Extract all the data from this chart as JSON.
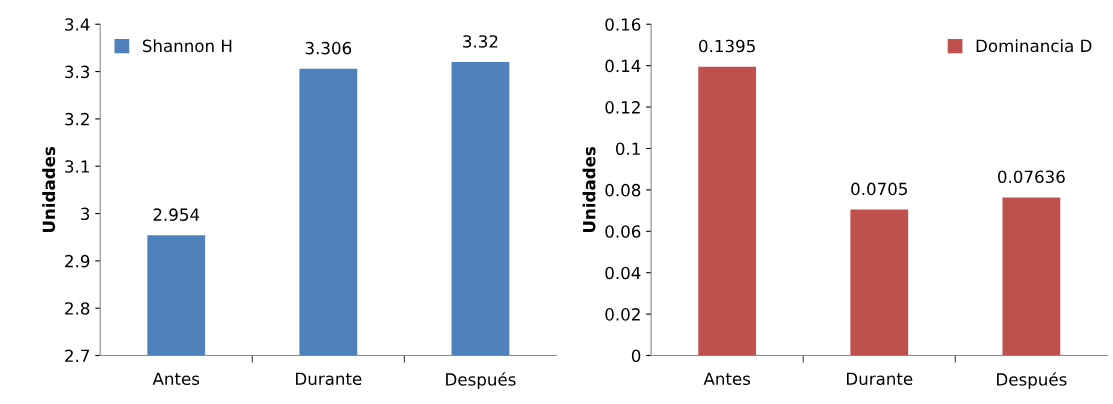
{
  "chart_data": [
    {
      "type": "bar",
      "ylabel": "Unidades",
      "categories": [
        "Antes",
        "Durante",
        "Después"
      ],
      "series": [
        {
          "name": "Shannon H",
          "color": "#4f81bd",
          "values": [
            2.954,
            3.306,
            3.32
          ]
        }
      ],
      "ylim": [
        2.7,
        3.4
      ],
      "yticks": [
        2.7,
        2.8,
        2.9,
        3,
        3.1,
        3.2,
        3.3,
        3.4
      ],
      "data_labels": true,
      "legend": "top left"
    },
    {
      "type": "bar",
      "ylabel": "Unidades",
      "categories": [
        "Antes",
        "Durante",
        "Después"
      ],
      "series": [
        {
          "name": "Dominancia D",
          "color": "#c0504d",
          "values": [
            0.1395,
            0.0705,
            0.07636
          ]
        }
      ],
      "ylim": [
        0,
        0.16
      ],
      "yticks": [
        0,
        0.02,
        0.04,
        0.06,
        0.08,
        0.1,
        0.12,
        0.14,
        0.16
      ],
      "data_labels": true,
      "legend": "top right"
    }
  ]
}
